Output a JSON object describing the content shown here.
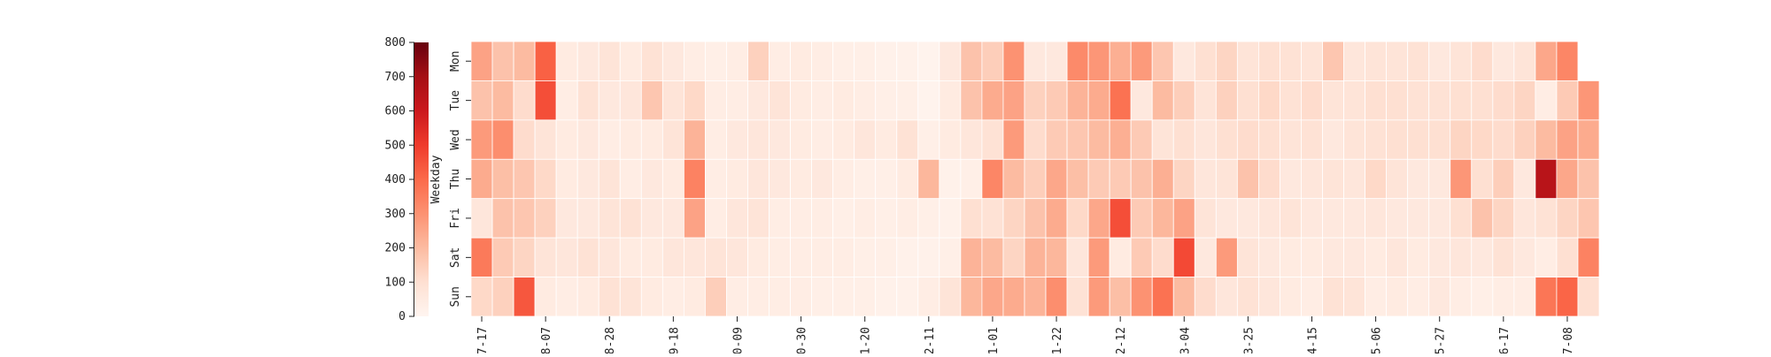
{
  "chart_data": {
    "type": "heatmap",
    "title": "",
    "xlabel": "",
    "ylabel": "Weekday",
    "rows": [
      "Mon",
      "Tue",
      "Wed",
      "Thu",
      "Fri",
      "Sat",
      "Sun"
    ],
    "x_tick_labels": [
      "7-17",
      "8-07",
      "8-28",
      "9-18",
      "0-09",
      "0-30",
      "1-20",
      "2-11",
      "1-01",
      "1-22",
      "2-12",
      "3-04",
      "3-25",
      "4-15",
      "5-06",
      "5-27",
      "6-17",
      "7-08"
    ],
    "x_tick_week_index": [
      0,
      3,
      6,
      9,
      12,
      15,
      18,
      21,
      24,
      27,
      30,
      33,
      36,
      39,
      42,
      45,
      48,
      51
    ],
    "colorbar": {
      "min": 0,
      "max": 800,
      "ticks": [
        0,
        100,
        200,
        300,
        400,
        500,
        600,
        700,
        800
      ],
      "colormap": "Reds",
      "stops": [
        "#fff5f0",
        "#fee0d2",
        "#fcbba1",
        "#fc9272",
        "#fb6a4a",
        "#ef3b2c",
        "#cb181d",
        "#a50f15",
        "#67000d"
      ]
    },
    "values": [
      [
        260,
        180,
        200,
        420,
        50,
        60,
        80,
        50,
        90,
        60,
        40,
        30,
        40,
        140,
        40,
        50,
        40,
        30,
        30,
        20,
        20,
        10,
        60,
        180,
        150,
        300,
        60,
        60,
        320,
        290,
        230,
        280,
        170,
        60,
        100,
        130,
        80,
        100,
        90,
        80,
        170,
        70,
        80,
        80,
        90,
        60,
        80,
        110,
        60,
        80,
        250,
        330
      ],
      [
        180,
        200,
        110,
        460,
        40,
        90,
        60,
        70,
        170,
        80,
        120,
        40,
        40,
        60,
        80,
        50,
        40,
        50,
        40,
        30,
        30,
        10,
        50,
        180,
        240,
        260,
        140,
        160,
        220,
        240,
        380,
        60,
        200,
        150,
        80,
        140,
        100,
        120,
        90,
        110,
        80,
        80,
        100,
        100,
        90,
        90,
        100,
        100,
        110,
        130,
        40,
        160,
        290
      ],
      [
        280,
        310,
        110,
        80,
        50,
        60,
        40,
        50,
        50,
        80,
        220,
        40,
        60,
        70,
        60,
        50,
        40,
        50,
        70,
        50,
        90,
        30,
        50,
        70,
        90,
        280,
        110,
        160,
        170,
        200,
        230,
        160,
        80,
        100,
        70,
        100,
        110,
        100,
        80,
        90,
        60,
        80,
        90,
        100,
        100,
        100,
        130,
        120,
        110,
        140,
        200,
        260,
        240
      ],
      [
        240,
        190,
        170,
        120,
        50,
        60,
        80,
        40,
        60,
        50,
        340,
        40,
        50,
        70,
        60,
        50,
        60,
        40,
        30,
        30,
        50,
        210,
        20,
        30,
        330,
        200,
        150,
        250,
        190,
        160,
        160,
        180,
        230,
        130,
        70,
        80,
        180,
        110,
        60,
        70,
        80,
        70,
        120,
        80,
        60,
        60,
        290,
        100,
        150,
        60,
        650,
        250,
        180
      ],
      [
        70,
        180,
        170,
        140,
        60,
        60,
        80,
        90,
        60,
        60,
        260,
        40,
        70,
        80,
        40,
        40,
        40,
        30,
        40,
        30,
        40,
        30,
        20,
        100,
        90,
        130,
        180,
        240,
        120,
        250,
        460,
        160,
        210,
        260,
        80,
        60,
        60,
        70,
        80,
        60,
        60,
        60,
        70,
        60,
        60,
        60,
        100,
        180,
        130,
        70,
        90,
        130,
        170
      ],
      [
        360,
        160,
        130,
        80,
        70,
        90,
        70,
        50,
        50,
        70,
        70,
        80,
        70,
        50,
        40,
        40,
        40,
        40,
        30,
        30,
        20,
        20,
        30,
        220,
        200,
        130,
        220,
        210,
        70,
        280,
        50,
        160,
        110,
        470,
        60,
        280,
        80,
        60,
        50,
        50,
        60,
        60,
        50,
        70,
        50,
        60,
        70,
        60,
        90,
        60,
        40,
        100,
        340
      ],
      [
        120,
        140,
        440,
        50,
        40,
        50,
        90,
        80,
        50,
        40,
        50,
        150,
        40,
        40,
        40,
        40,
        30,
        30,
        30,
        20,
        20,
        40,
        80,
        210,
        250,
        240,
        220,
        310,
        90,
        280,
        190,
        300,
        380,
        200,
        110,
        70,
        90,
        70,
        50,
        40,
        90,
        80,
        40,
        50,
        40,
        60,
        40,
        30,
        40,
        40,
        370,
        410,
        100
      ]
    ]
  }
}
